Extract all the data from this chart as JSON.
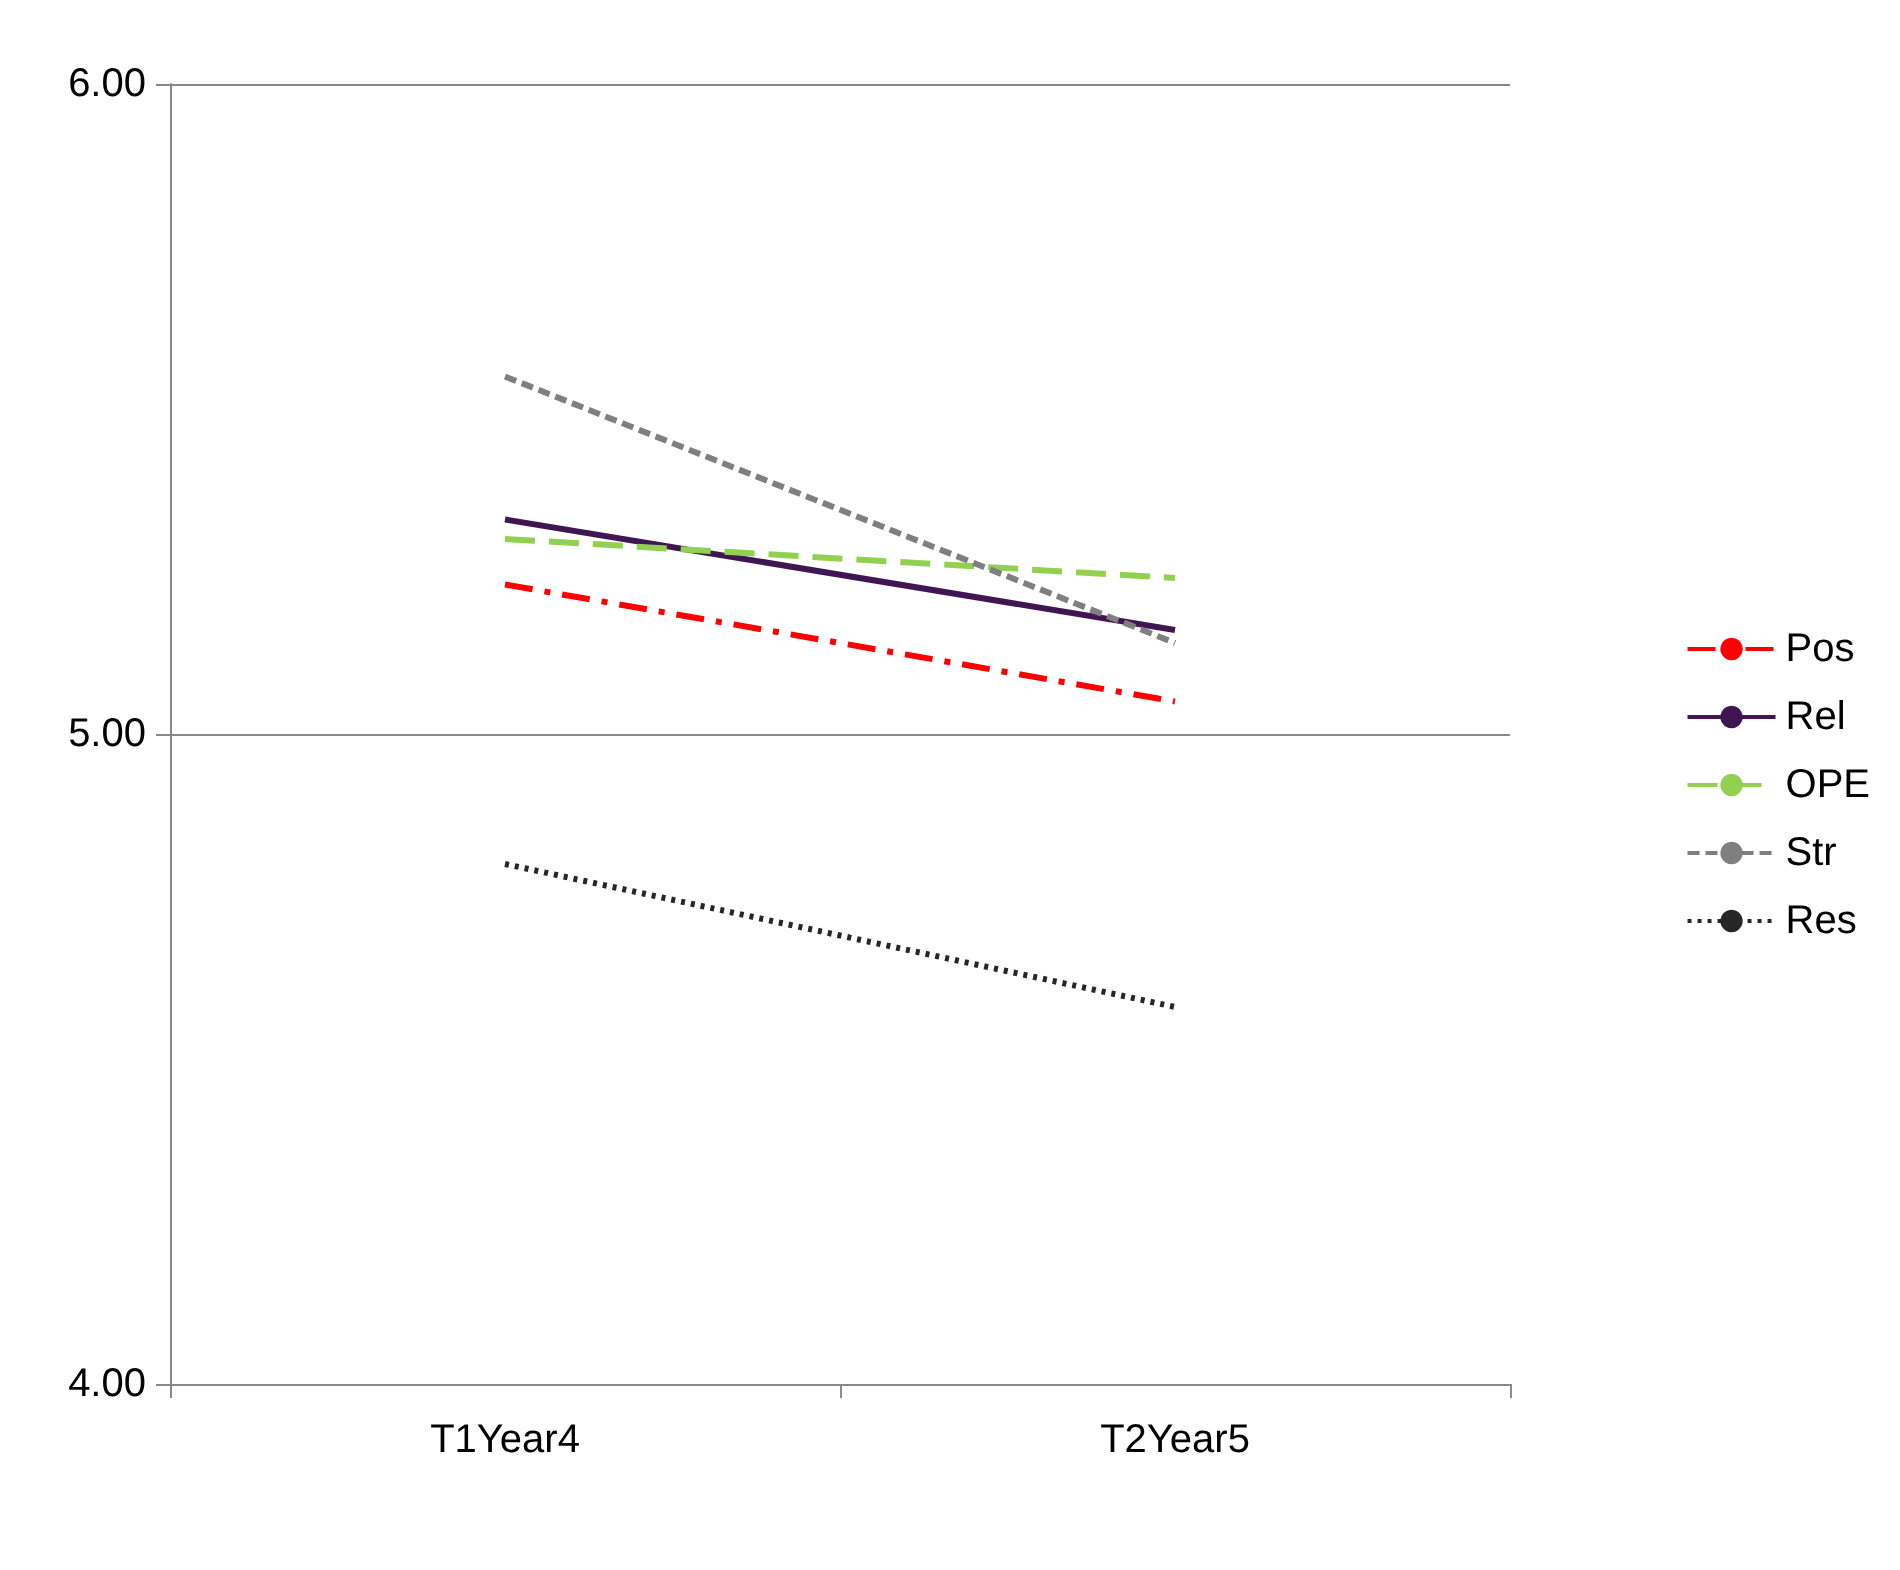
{
  "chart_data": {
    "type": "line",
    "categories": [
      "T1Year4",
      "T2Year5"
    ],
    "series": [
      {
        "name": "Pos",
        "color": "#ff0000",
        "line_style": "dashdot",
        "values": [
          5.23,
          5.05
        ]
      },
      {
        "name": "Rel",
        "color": "#3f1651",
        "line_style": "solid",
        "values": [
          5.33,
          5.16
        ]
      },
      {
        "name": "OPE",
        "color": "#92d050",
        "line_style": "longdash",
        "values": [
          5.3,
          5.24
        ]
      },
      {
        "name": "Str",
        "color": "#7f7f7f",
        "line_style": "dashed",
        "values": [
          5.55,
          5.14
        ]
      },
      {
        "name": "Res",
        "color": "#262626",
        "line_style": "dotted",
        "values": [
          4.8,
          4.58
        ]
      }
    ],
    "ylim": [
      4,
      6
    ],
    "yticks": [
      {
        "value": 4,
        "label": "4.00"
      },
      {
        "value": 5,
        "label": "5.00"
      },
      {
        "value": 6,
        "label": "6.00"
      }
    ],
    "grid": "y",
    "legend": "right",
    "marker": "none"
  }
}
